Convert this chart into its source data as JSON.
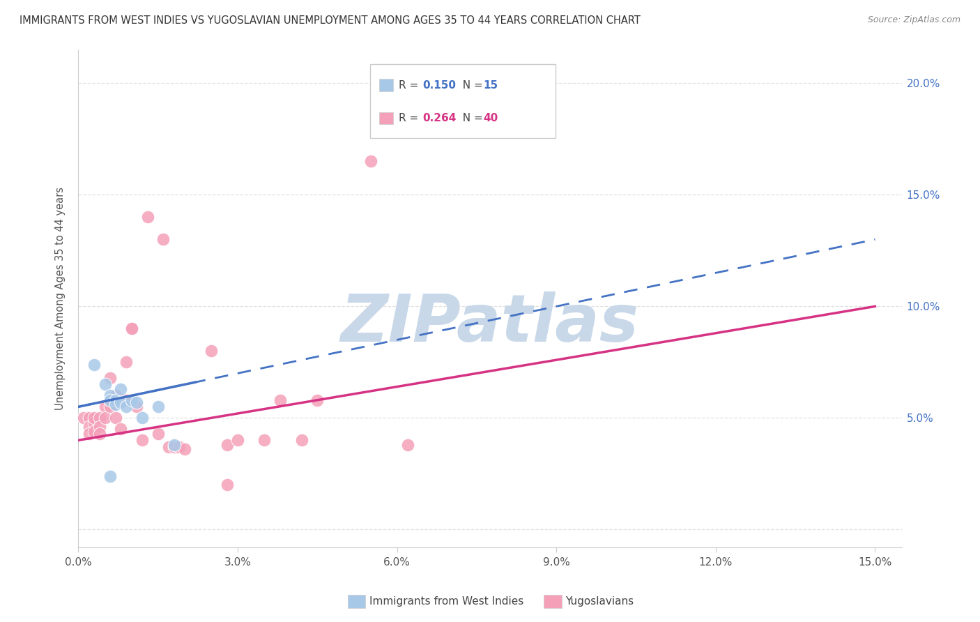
{
  "title": "IMMIGRANTS FROM WEST INDIES VS YUGOSLAVIAN UNEMPLOYMENT AMONG AGES 35 TO 44 YEARS CORRELATION CHART",
  "source": "Source: ZipAtlas.com",
  "ylabel": "Unemployment Among Ages 35 to 44 years",
  "xlim": [
    0.0,
    0.155
  ],
  "ylim": [
    -0.008,
    0.215
  ],
  "xticks": [
    0.0,
    0.03,
    0.06,
    0.09,
    0.12,
    0.15
  ],
  "yticks": [
    0.0,
    0.05,
    0.1,
    0.15,
    0.2
  ],
  "ytick_labels_right": [
    "",
    "5.0%",
    "10.0%",
    "15.0%",
    "20.0%"
  ],
  "xtick_labels": [
    "0.0%",
    "3.0%",
    "6.0%",
    "9.0%",
    "12.0%",
    "15.0%"
  ],
  "watermark": "ZIPatlas",
  "blue_points": [
    [
      0.003,
      0.074
    ],
    [
      0.005,
      0.065
    ],
    [
      0.006,
      0.06
    ],
    [
      0.006,
      0.058
    ],
    [
      0.007,
      0.058
    ],
    [
      0.007,
      0.056
    ],
    [
      0.008,
      0.057
    ],
    [
      0.008,
      0.063
    ],
    [
      0.009,
      0.055
    ],
    [
      0.01,
      0.058
    ],
    [
      0.011,
      0.057
    ],
    [
      0.012,
      0.05
    ],
    [
      0.015,
      0.055
    ],
    [
      0.018,
      0.038
    ],
    [
      0.006,
      0.024
    ]
  ],
  "pink_points": [
    [
      0.001,
      0.05
    ],
    [
      0.002,
      0.05
    ],
    [
      0.002,
      0.046
    ],
    [
      0.002,
      0.043
    ],
    [
      0.003,
      0.048
    ],
    [
      0.003,
      0.05
    ],
    [
      0.003,
      0.044
    ],
    [
      0.004,
      0.05
    ],
    [
      0.004,
      0.046
    ],
    [
      0.004,
      0.043
    ],
    [
      0.005,
      0.055
    ],
    [
      0.005,
      0.05
    ],
    [
      0.006,
      0.068
    ],
    [
      0.006,
      0.055
    ],
    [
      0.007,
      0.05
    ],
    [
      0.007,
      0.06
    ],
    [
      0.008,
      0.045
    ],
    [
      0.009,
      0.075
    ],
    [
      0.009,
      0.058
    ],
    [
      0.01,
      0.09
    ],
    [
      0.01,
      0.09
    ],
    [
      0.011,
      0.055
    ],
    [
      0.012,
      0.04
    ],
    [
      0.013,
      0.14
    ],
    [
      0.015,
      0.043
    ],
    [
      0.016,
      0.13
    ],
    [
      0.017,
      0.037
    ],
    [
      0.018,
      0.037
    ],
    [
      0.019,
      0.037
    ],
    [
      0.02,
      0.036
    ],
    [
      0.025,
      0.08
    ],
    [
      0.028,
      0.038
    ],
    [
      0.03,
      0.04
    ],
    [
      0.035,
      0.04
    ],
    [
      0.038,
      0.058
    ],
    [
      0.042,
      0.04
    ],
    [
      0.045,
      0.058
    ],
    [
      0.055,
      0.165
    ],
    [
      0.062,
      0.038
    ],
    [
      0.028,
      0.02
    ]
  ],
  "blue_color": "#a8c8e8",
  "pink_color": "#f4a0b8",
  "blue_line_color": "#4472c4",
  "pink_line_color": "#d63384",
  "background_color": "#ffffff",
  "grid_color": "#e0e0e0",
  "title_color": "#333333",
  "watermark_color": "#c8d8e8",
  "legend_blue_r": "0.150",
  "legend_blue_n": "15",
  "legend_pink_r": "0.264",
  "legend_pink_n": "40"
}
